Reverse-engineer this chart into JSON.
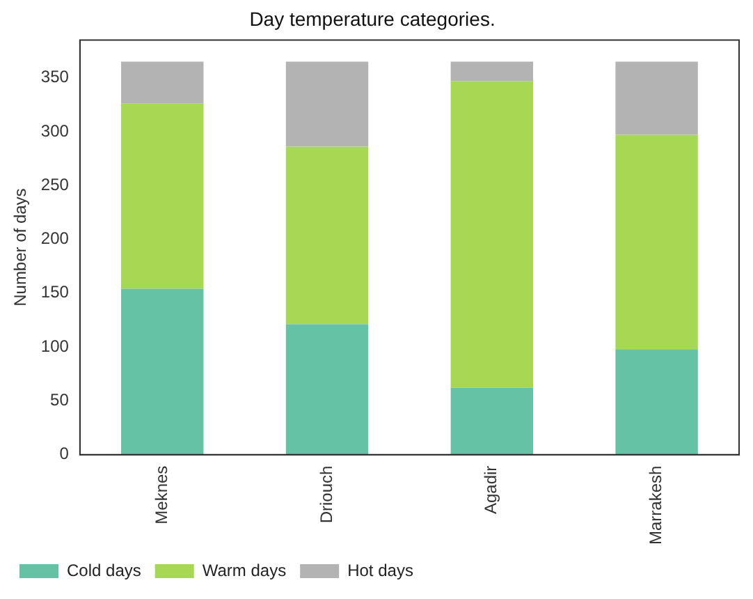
{
  "chart_data": {
    "type": "bar",
    "title": "Day temperature categories.",
    "ylabel": "Number of days",
    "categories": [
      "Meknes",
      "Driouch",
      "Agadir",
      "Marrakesh"
    ],
    "stacked": true,
    "series": [
      {
        "name": "Cold days",
        "color": "#66c2a5",
        "values": [
          154,
          121,
          62,
          98
        ]
      },
      {
        "name": "Warm days",
        "color": "#a6d854",
        "values": [
          172,
          165,
          285,
          199
        ]
      },
      {
        "name": "Hot days",
        "color": "#b3b3b3",
        "values": [
          39,
          79,
          18,
          68
        ]
      }
    ],
    "ylim": [
      0,
      385
    ],
    "yticks": [
      0,
      50,
      100,
      150,
      200,
      250,
      300,
      350
    ],
    "grid": false,
    "legend": "bottom left"
  }
}
